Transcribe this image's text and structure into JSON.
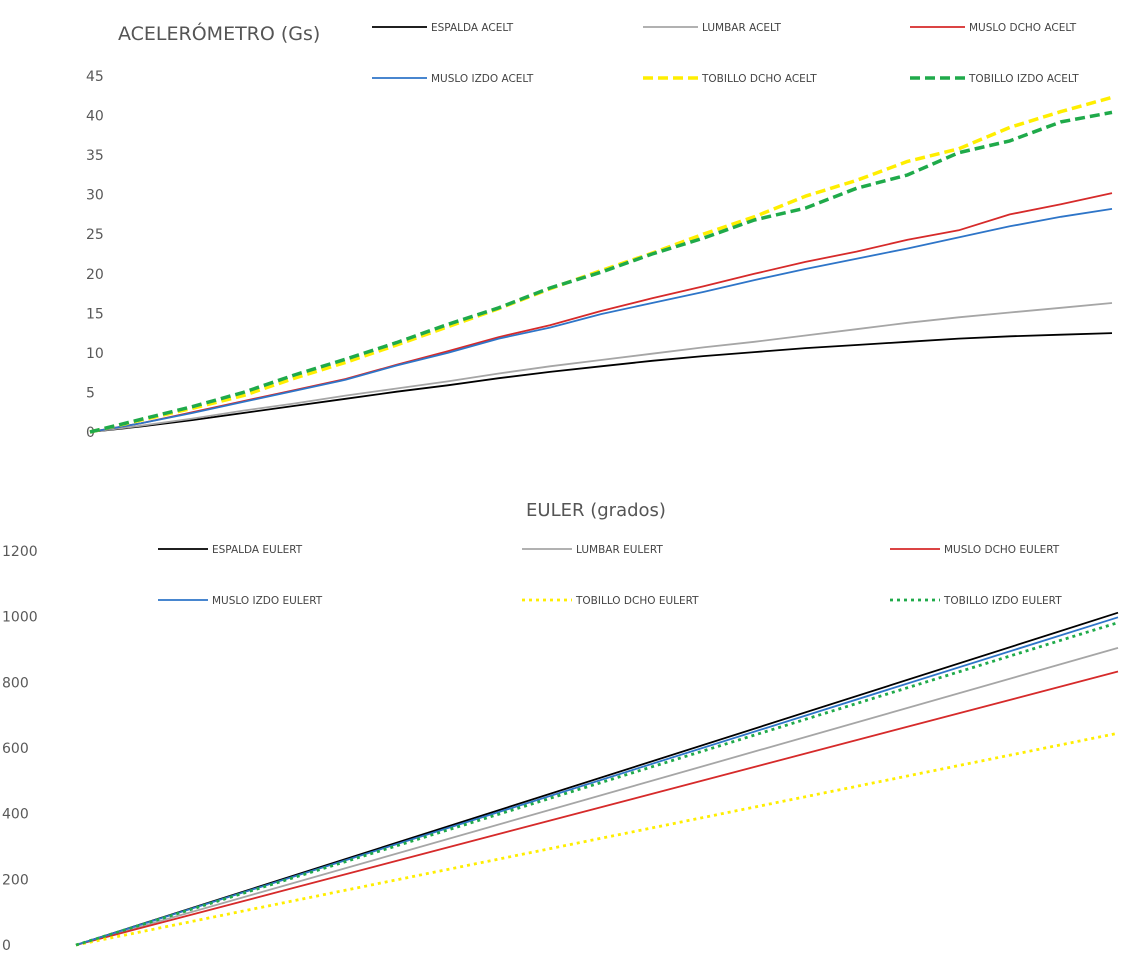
{
  "chart_data": [
    {
      "type": "line",
      "title": "ACELERÓMETRO (Gs)",
      "ylim": [
        0,
        45
      ],
      "y_ticks": [
        0,
        5,
        10,
        15,
        20,
        25,
        30,
        35,
        40,
        45
      ],
      "grid": false,
      "legend_position": "top",
      "x": [
        0,
        5,
        10,
        15,
        20,
        25,
        30,
        35,
        40,
        45,
        50,
        55,
        60,
        65,
        70,
        75,
        80,
        85,
        90,
        95,
        100
      ],
      "series": [
        {
          "name": "ESPALDA ACELT",
          "color": "#000000",
          "style": "solid",
          "values": [
            0,
            0.7,
            1.5,
            2.4,
            3.3,
            4.2,
            5.1,
            5.9,
            6.8,
            7.6,
            8.3,
            9.0,
            9.6,
            10.1,
            10.6,
            11.0,
            11.4,
            11.8,
            12.1,
            12.3,
            12.5
          ]
        },
        {
          "name": "LUMBAR ACELT",
          "color": "#a6a6a6",
          "style": "solid",
          "values": [
            0,
            0.8,
            1.7,
            2.7,
            3.6,
            4.6,
            5.5,
            6.4,
            7.4,
            8.3,
            9.1,
            9.9,
            10.7,
            11.4,
            12.2,
            13.0,
            13.8,
            14.5,
            15.1,
            15.7,
            16.3
          ]
        },
        {
          "name": "MUSLO DCHO ACELT",
          "color": "#d62a2a",
          "style": "solid",
          "values": [
            0,
            1.1,
            2.5,
            3.9,
            5.3,
            6.7,
            8.5,
            10.2,
            12.0,
            13.5,
            15.3,
            16.9,
            18.4,
            20.0,
            21.5,
            22.8,
            24.3,
            25.5,
            27.5,
            28.8,
            30.2
          ]
        },
        {
          "name": "MUSLO IZDO ACELT",
          "color": "#2e75c8",
          "style": "solid",
          "values": [
            0,
            1.1,
            2.4,
            3.8,
            5.2,
            6.6,
            8.4,
            10.0,
            11.8,
            13.2,
            14.9,
            16.3,
            17.7,
            19.2,
            20.6,
            21.9,
            23.2,
            24.6,
            26.0,
            27.2,
            28.2
          ]
        },
        {
          "name": "TOBILLO DCHO ACELT",
          "color": "#ffee00",
          "style": "dashed",
          "values": [
            0,
            1.5,
            3.0,
            4.6,
            6.8,
            8.8,
            11.0,
            13.3,
            15.6,
            18.1,
            20.4,
            22.6,
            25.0,
            27.2,
            29.8,
            31.8,
            34.2,
            35.8,
            38.5,
            40.5,
            42.3
          ]
        },
        {
          "name": "TOBILLO IZDO ACELT",
          "color": "#1faa4a",
          "style": "dashed",
          "values": [
            0,
            1.6,
            3.2,
            5.0,
            7.2,
            9.2,
            11.3,
            13.6,
            15.7,
            18.2,
            20.2,
            22.5,
            24.5,
            26.8,
            28.3,
            30.8,
            32.5,
            35.3,
            36.8,
            39.2,
            40.4
          ]
        }
      ]
    },
    {
      "type": "line",
      "title": "EULER (grados)",
      "ylim": [
        0,
        1200
      ],
      "y_ticks": [
        0,
        200,
        400,
        600,
        800,
        1000,
        1200
      ],
      "grid": false,
      "legend_position": "top",
      "x": [
        0,
        100
      ],
      "series": [
        {
          "name": "ESPALDA EULERT",
          "color": "#000000",
          "style": "solid",
          "values": [
            0,
            1012
          ]
        },
        {
          "name": "LUMBAR EULERT",
          "color": "#a6a6a6",
          "style": "solid",
          "values": [
            0,
            905
          ]
        },
        {
          "name": "MUSLO DCHO EULERT",
          "color": "#d62a2a",
          "style": "solid",
          "values": [
            0,
            833
          ]
        },
        {
          "name": "MUSLO IZDO EULERT",
          "color": "#2e75c8",
          "style": "solid",
          "values": [
            0,
            998
          ]
        },
        {
          "name": "TOBILLO DCHO EULERT",
          "color": "#ffee00",
          "style": "dotted",
          "values": [
            0,
            645
          ]
        },
        {
          "name": "TOBILLO IZDO EULERT",
          "color": "#1faa4a",
          "style": "dotted",
          "values": [
            0,
            982
          ]
        }
      ]
    }
  ]
}
